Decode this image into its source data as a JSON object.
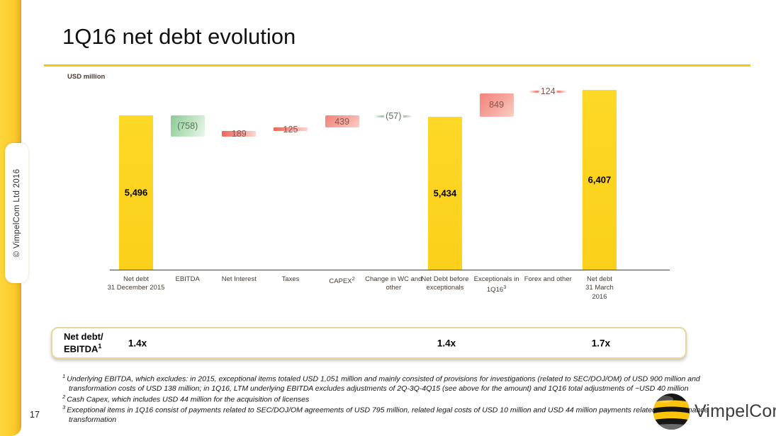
{
  "sidebar": {
    "copyright": "© VimpelCom Ltd 2016",
    "page_number": "17"
  },
  "header": {
    "title": "1Q16 net debt evolution",
    "units_label": "USD million"
  },
  "chart_data": {
    "type": "bar",
    "subtype": "waterfall",
    "title": "1Q16 net debt evolution",
    "ylabel": "USD million",
    "ylim": [
      0,
      6575
    ],
    "grid": false,
    "categories": [
      "Net debt 31 December 2015",
      "EBITDA",
      "Net Interest",
      "Taxes",
      "CAPEX",
      "Change in WC and other",
      "Net Debt before exceptionals",
      "Exceptionals in 1Q16",
      "Forex and other",
      "Net debt 31 March 2016"
    ],
    "values": [
      5496,
      -758,
      189,
      125,
      439,
      -57,
      5434,
      849,
      124,
      6407
    ],
    "bars": [
      {
        "category_lines": [
          "Net debt",
          "31 December 2015"
        ],
        "sup": "",
        "value": 5496,
        "label": "5,496",
        "from": 0,
        "to": 5496,
        "style": "total"
      },
      {
        "category_lines": [
          "EBITDA"
        ],
        "sup": "",
        "value": -758,
        "label": "(758)",
        "from": 5496,
        "to": 4738,
        "style": "box-green"
      },
      {
        "category_lines": [
          "Net Interest"
        ],
        "sup": "",
        "value": 189,
        "label": "189",
        "from": 4738,
        "to": 4927,
        "style": "box-red-thin"
      },
      {
        "category_lines": [
          "Taxes"
        ],
        "sup": "",
        "value": 125,
        "label": "125",
        "from": 4927,
        "to": 5052,
        "style": "box-red-thin"
      },
      {
        "category_lines": [
          "CAPEX"
        ],
        "sup": "2",
        "value": 439,
        "label": "439",
        "from": 5052,
        "to": 5491,
        "style": "box-red"
      },
      {
        "category_lines": [
          "Change in WC and",
          "other"
        ],
        "sup": "",
        "value": -57,
        "label": "(57)",
        "from": 5491,
        "to": 5434,
        "style": "line-green"
      },
      {
        "category_lines": [
          "Net Debt before",
          "exceptionals"
        ],
        "sup": "",
        "value": 5434,
        "label": "5,434",
        "from": 0,
        "to": 5434,
        "style": "total"
      },
      {
        "category_lines": [
          "Exceptionals in",
          "1Q16"
        ],
        "sup": "3",
        "value": 849,
        "label": "849",
        "from": 5434,
        "to": 6283,
        "style": "box-red"
      },
      {
        "category_lines": [
          "Forex and other"
        ],
        "sup": "",
        "value": 124,
        "label": "124",
        "from": 6283,
        "to": 6407,
        "style": "line-red"
      },
      {
        "category_lines": [
          "Net debt",
          "31 March",
          "2016"
        ],
        "sup": "",
        "value": 6407,
        "label": "6,407",
        "from": 0,
        "to": 6407,
        "style": "total"
      }
    ]
  },
  "ratio_bar": {
    "label_line1": "Net debt/",
    "label_line2": "EBITDA",
    "label_sup": "1",
    "values": [
      {
        "text": "1.4x",
        "bar_index": 0
      },
      {
        "text": "1.4x",
        "bar_index": 6
      },
      {
        "text": "1.7x",
        "bar_index": 9
      }
    ]
  },
  "footnotes": [
    {
      "sup": "1",
      "lines": [
        "Underlying EBITDA, which excludes: in 2015, exceptional items totaled USD 1,051 million and mainly consisted of provisions for investigations (related to SEC/DOJ/OM) of USD 900 million and",
        "transformation costs of USD 138 million; in 1Q16, LTM underlying EBITDA excludes adjustments of 2Q-3Q-4Q15 (see above for the amount) and 1Q16 total adjustments of ~USD 40 million"
      ]
    },
    {
      "sup": "2",
      "lines": [
        "Cash Capex, which includes USD 44 million for the acquisition of licenses"
      ]
    },
    {
      "sup": "3",
      "lines": [
        "Exceptional items in 1Q16 consist of payments related to SEC/DOJ/OM agreements of USD 795 million, related legal costs of USD 10 million and USD 44 million payments related to performance",
        "transformation"
      ]
    }
  ],
  "logo": {
    "text": "VimpelCom",
    "sphere_icon": "bee-striped-sphere"
  },
  "colors": {
    "accent_yellow": "#FCD21C",
    "title_rule_yellow": "#F2C811",
    "bar_yellow": "#FBD01A",
    "decrease_green": "#8CC996",
    "increase_red": "#F3837B",
    "ratio_border": "#E6D79E",
    "logo_stripe_yellow": "#FFC50A"
  }
}
